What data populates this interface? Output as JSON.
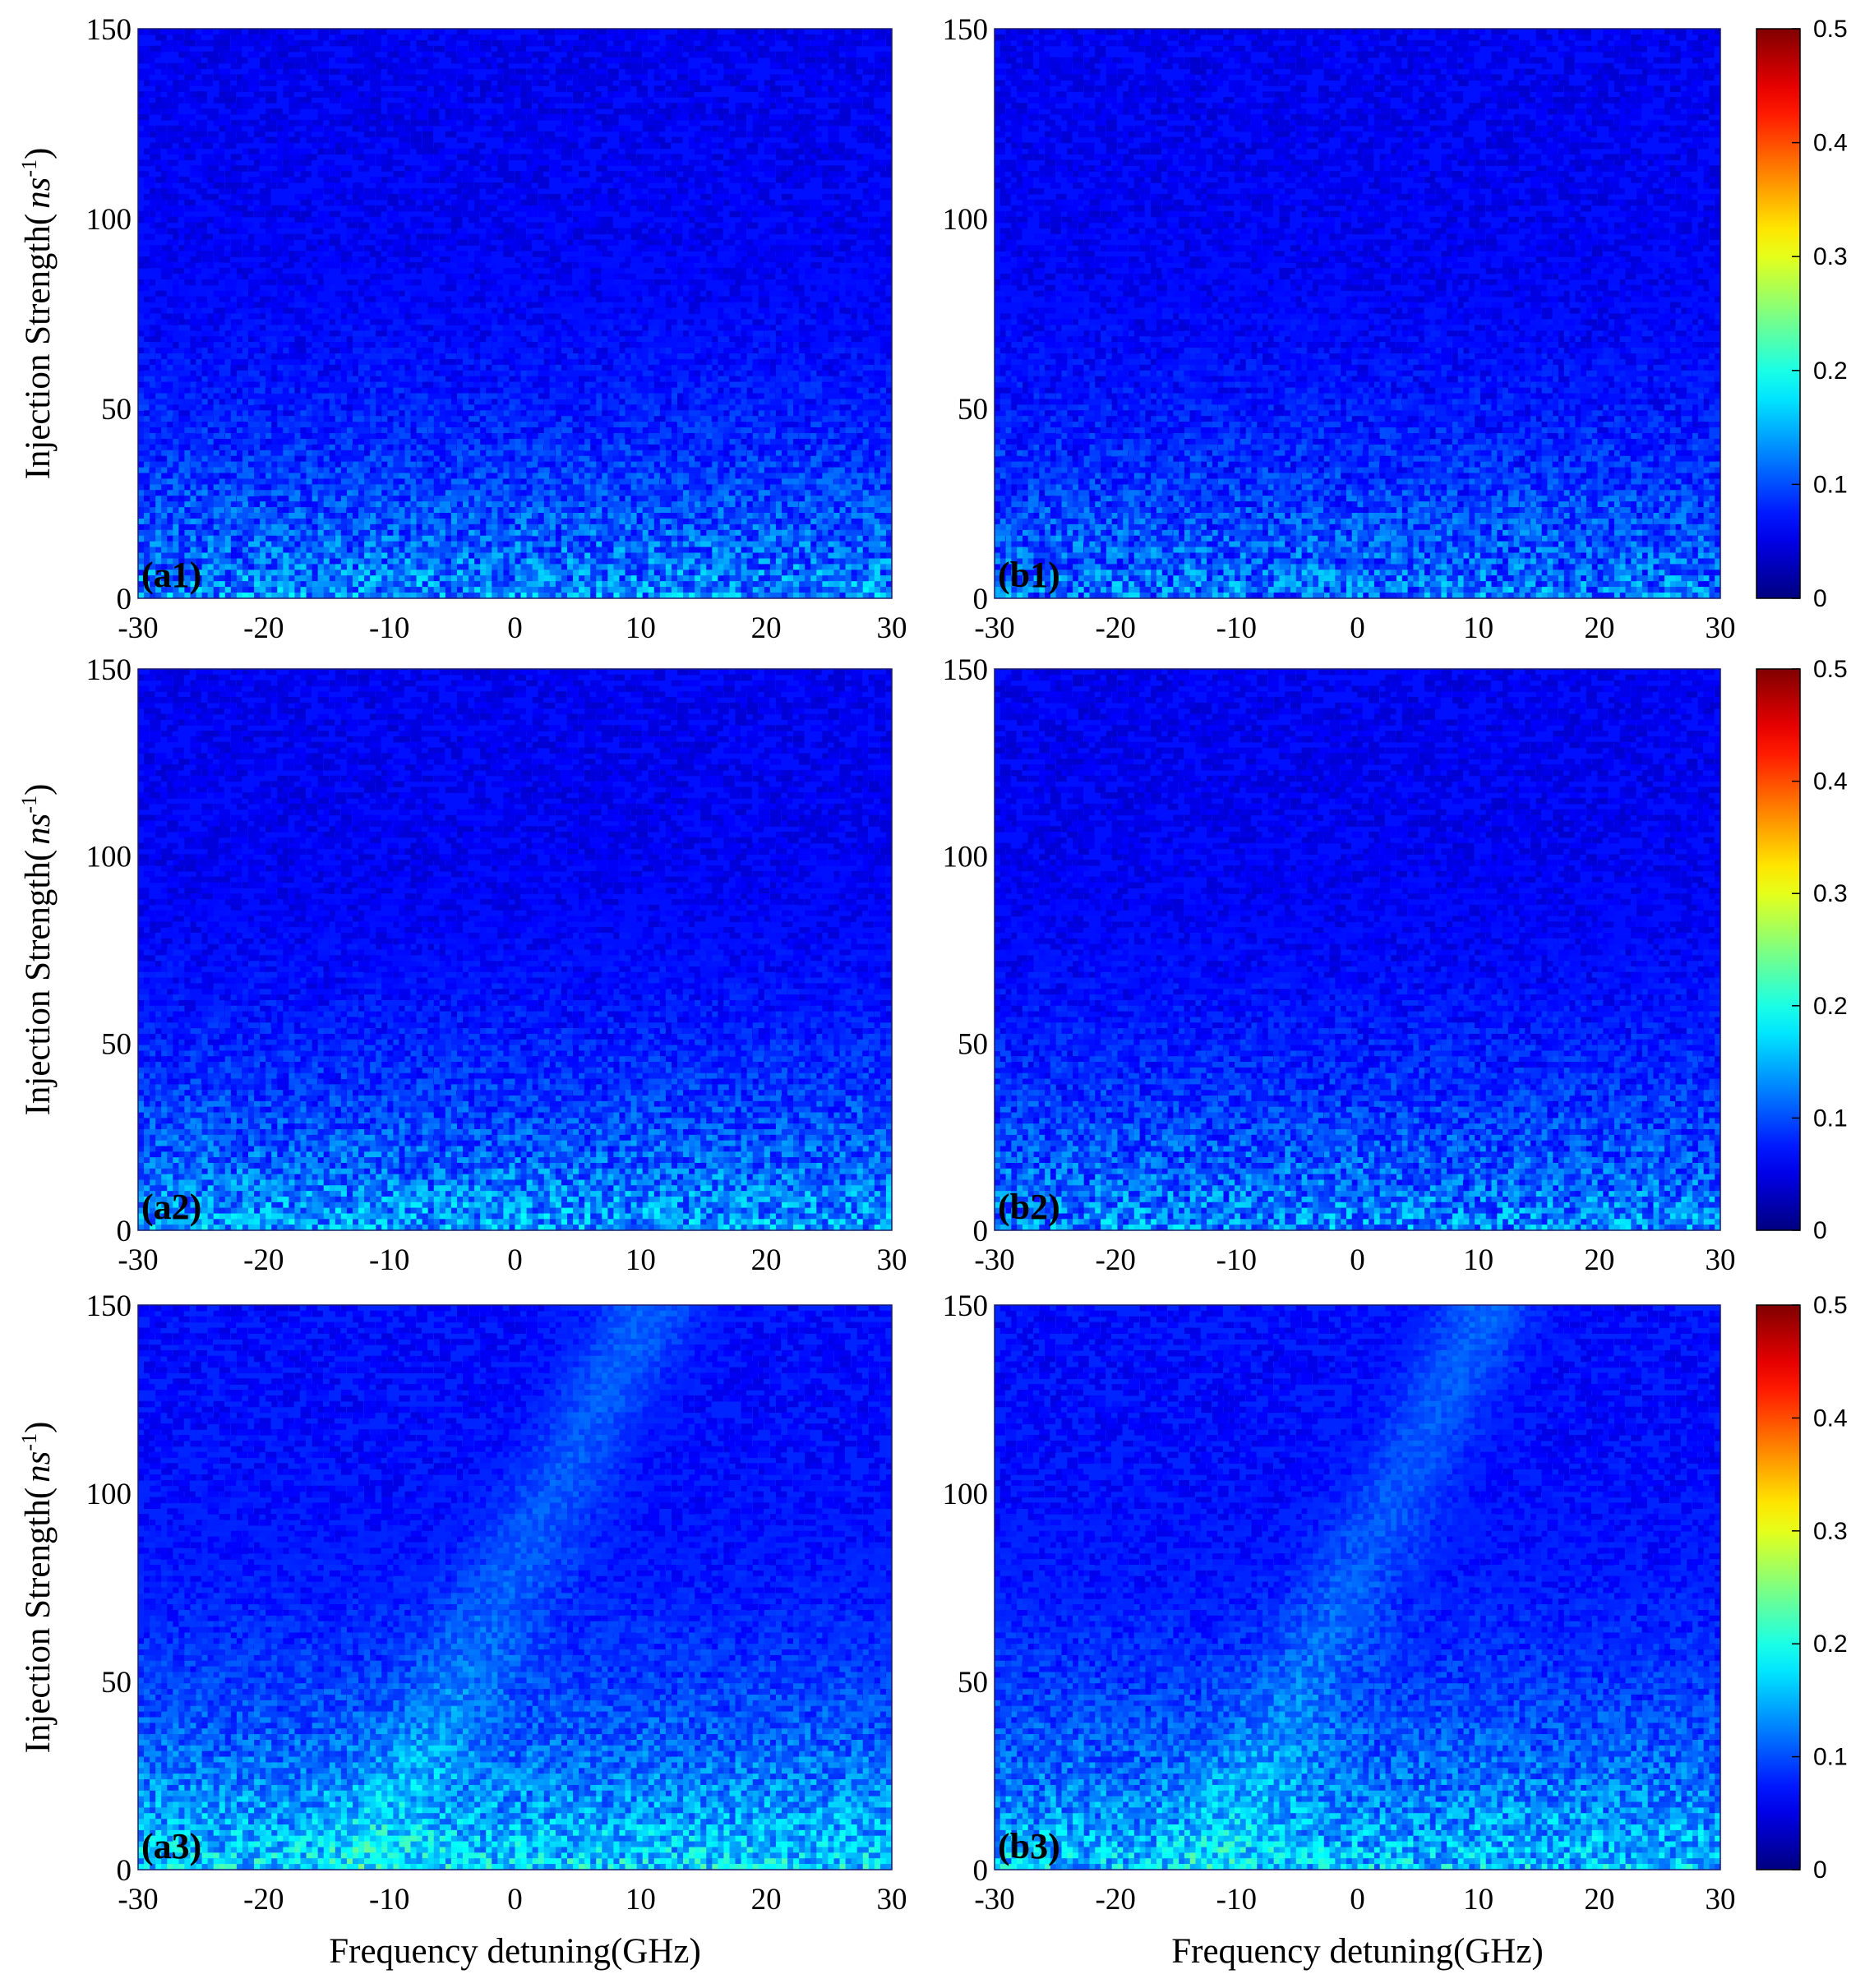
{
  "chart_data": {
    "type": "heatmap",
    "layout": "3x2 grid of heatmap panels, each row sharing one colorbar",
    "xlabel": "Frequency detuning(GHz)",
    "ylabel": "Injection Strength( ns⁻¹)",
    "ylabel_text": "Injection Strength(",
    "ylabel_unit": "ns",
    "ylabel_exp": "-1",
    "ylabel_close": ")",
    "xlim": [
      -30,
      30
    ],
    "ylim": [
      0,
      150
    ],
    "xticks": [
      "-30",
      "-20",
      "-10",
      "0",
      "10",
      "20",
      "30"
    ],
    "yticks": [
      "0",
      "50",
      "100",
      "150"
    ],
    "colormap": "jet",
    "colorbar": {
      "range": [
        0,
        0.5
      ],
      "ticks": [
        "0",
        "0.1",
        "0.2",
        "0.3",
        "0.4",
        "0.5"
      ]
    },
    "panels": [
      {
        "label": "(a1)",
        "row": 0,
        "col": 0,
        "base_level": 0.07,
        "low_injection_level": 0.15,
        "peak_level": 0.19,
        "diagonal_band": false
      },
      {
        "label": "(b1)",
        "row": 0,
        "col": 1,
        "base_level": 0.07,
        "low_injection_level": 0.14,
        "peak_level": 0.18,
        "diagonal_band": false
      },
      {
        "label": "(a2)",
        "row": 1,
        "col": 0,
        "base_level": 0.07,
        "low_injection_level": 0.16,
        "peak_level": 0.2,
        "diagonal_band": false
      },
      {
        "label": "(b2)",
        "row": 1,
        "col": 1,
        "base_level": 0.07,
        "low_injection_level": 0.15,
        "peak_level": 0.19,
        "diagonal_band": false
      },
      {
        "label": "(a3)",
        "row": 2,
        "col": 0,
        "base_level": 0.08,
        "low_injection_level": 0.19,
        "peak_level": 0.26,
        "diagonal_band": true
      },
      {
        "label": "(b3)",
        "row": 2,
        "col": 1,
        "base_level": 0.08,
        "low_injection_level": 0.18,
        "peak_level": 0.27,
        "diagonal_band": true
      }
    ]
  }
}
